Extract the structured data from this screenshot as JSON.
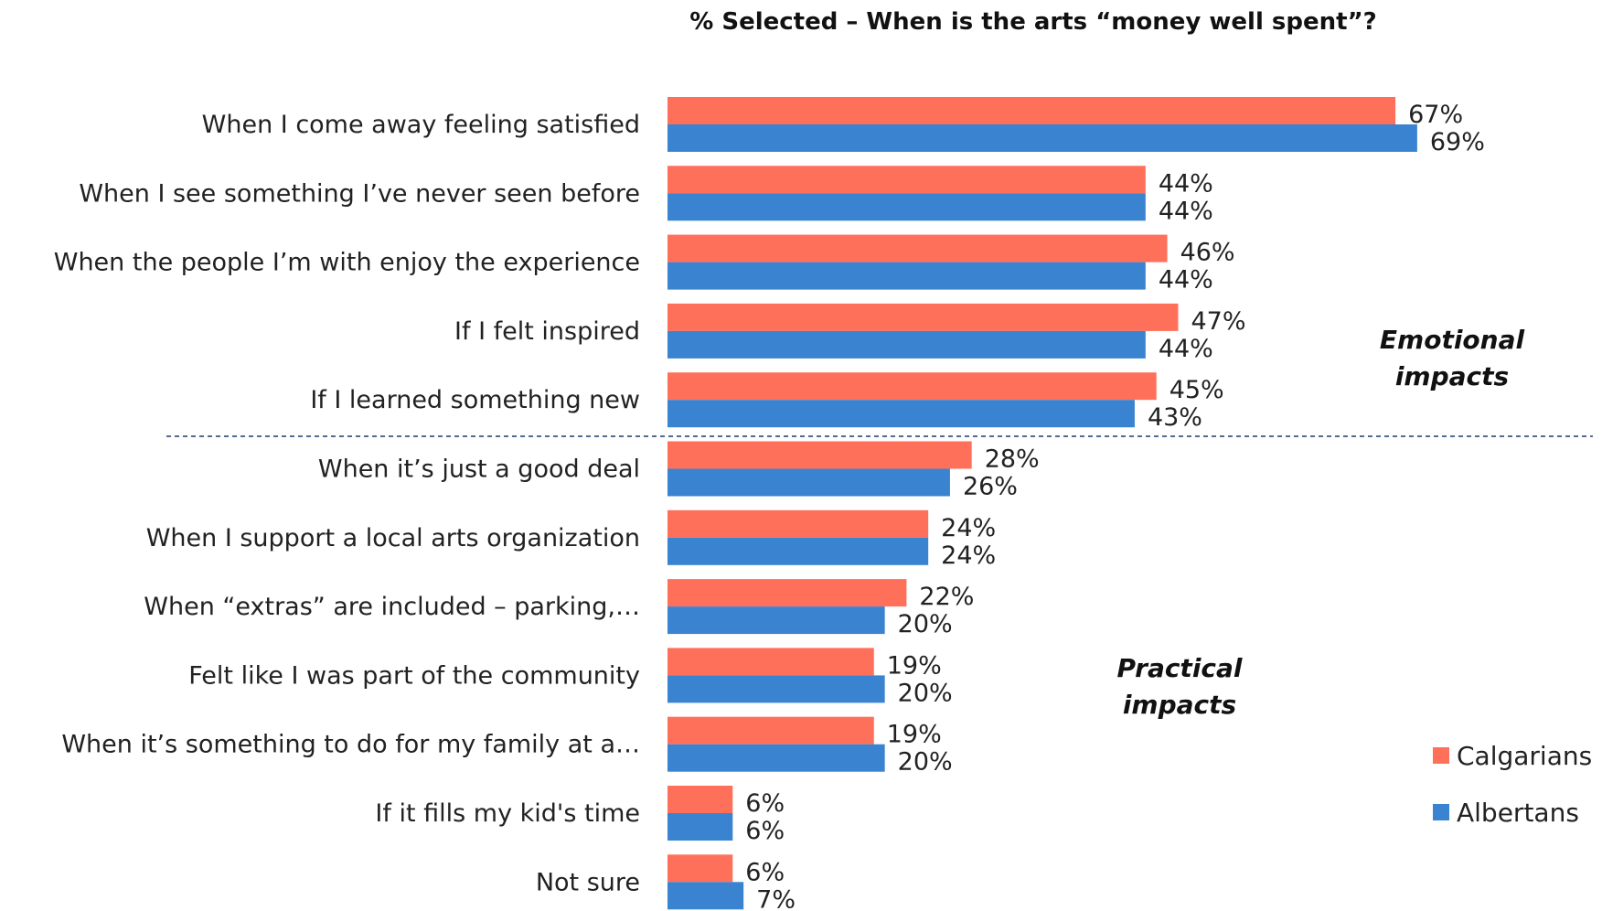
{
  "chart_data": {
    "type": "bar",
    "orientation": "horizontal",
    "title": "% Selected – When is the arts “money well spent”?",
    "categories": [
      "When I come away feeling satisfied",
      "When I see something I’ve never seen before",
      "When the people I’m with enjoy the experience",
      "If I felt inspired",
      "If I learned something new",
      "When it’s just a good deal",
      "When I support a local arts organization",
      "When “extras” are included – parking,…",
      "Felt like I was part of the community",
      "When it’s something to do for my family at a…",
      "If it fills my kid's time",
      "Not sure"
    ],
    "series": [
      {
        "name": "Calgarians",
        "color": "#FF705A",
        "values": [
          67,
          44,
          46,
          47,
          45,
          28,
          24,
          22,
          19,
          19,
          6,
          6
        ]
      },
      {
        "name": "Albertans",
        "color": "#3A83D0",
        "values": [
          69,
          44,
          44,
          44,
          43,
          26,
          24,
          20,
          20,
          20,
          6,
          7
        ]
      }
    ],
    "value_suffix": "%",
    "xlim": [
      0,
      85
    ],
    "groups": [
      {
        "label_line1": "Emotional",
        "label_line2": "impacts",
        "category_count": 5
      },
      {
        "label_line1": "Practical",
        "label_line2": "impacts",
        "category_count": 7
      }
    ],
    "legend_position": "bottom-right",
    "divider": "dashed line between groups",
    "grid": false
  }
}
